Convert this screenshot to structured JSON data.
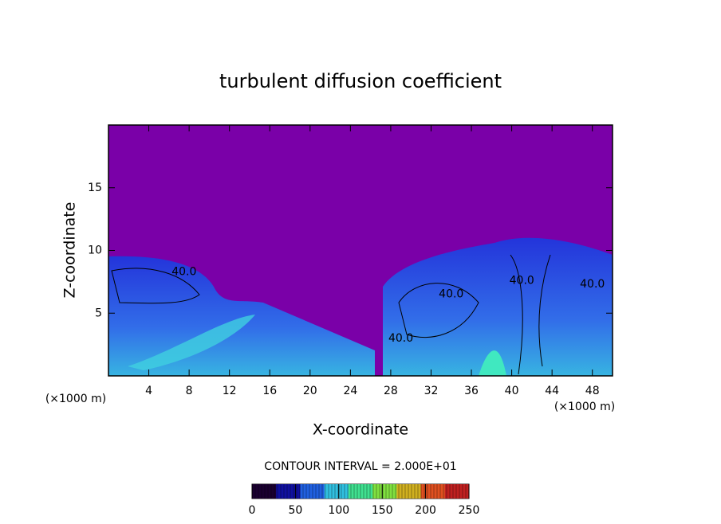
{
  "chart_data": {
    "type": "contour",
    "title": "turbulent diffusion coefficient",
    "x_label": "X-coordinate",
    "y_label": "Z-coordinate",
    "x_unit_label": "(×1000 m)",
    "y_unit_label": "(×1000 m)",
    "xlim": [
      0,
      50
    ],
    "xticks": [
      4,
      8,
      12,
      16,
      20,
      24,
      28,
      32,
      36,
      40,
      44,
      48
    ],
    "ylim": [
      0,
      20
    ],
    "yticks": [
      5,
      10,
      15
    ],
    "background_color": "#7a00a8",
    "contour_labels": [
      {
        "text": "40.0",
        "x": 7.5,
        "y": 8.3
      },
      {
        "text": "40.0",
        "x": 34,
        "y": 6.5
      },
      {
        "text": "40.0",
        "x": 41,
        "y": 7.6
      },
      {
        "text": "40.0",
        "x": 48,
        "y": 7.3
      },
      {
        "text": "40.0",
        "x": 29,
        "y": 3
      }
    ],
    "contour_interval_label": "CONTOUR INTERVAL = 2.000E+01",
    "colorbar": {
      "lim": [
        0,
        250
      ],
      "ticks": [
        0,
        50,
        100,
        150,
        200,
        250
      ],
      "colors": [
        "#1a0030",
        "#1010a0",
        "#2060e0",
        "#30c0e0",
        "#40e090",
        "#80e040",
        "#d0b020",
        "#e05020",
        "#c02020"
      ]
    }
  }
}
